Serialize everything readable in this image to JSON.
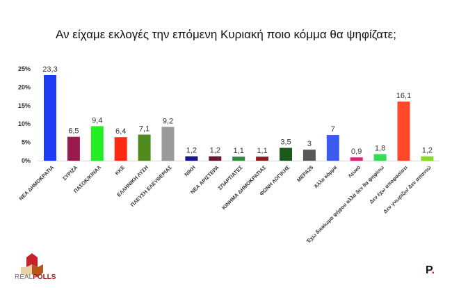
{
  "chart_data": {
    "type": "bar",
    "title": "Αν είχαμε εκλογές την επόμενη Κυριακή ποιο κόμμα θα ψηφίζατε;",
    "xlabel": "",
    "ylabel": "",
    "ylim": [
      0,
      25
    ],
    "yticks": [
      "0%",
      "5%",
      "10%",
      "15%",
      "20%",
      "25%"
    ],
    "ytick_values": [
      0,
      5,
      10,
      15,
      20,
      25
    ],
    "grid": false,
    "categories": [
      "ΝΕΑ ΔΗΜΟΚΡΑΤΙΑ",
      "ΣΥΡΙΖΑ",
      "ΠΑΣΟΚ/ΚΙΝΑΛ",
      "ΚΚΕ",
      "ΕΛΛΗΝΙΚΗ ΛΥΣΗ",
      "ΠΛΕΥΣΗ ΕΛΕΥΘΕΡΙΑΣ",
      "ΝΙΚΗ",
      "ΝΕΑ ΑΡΙΣΤΕΡΑ",
      "ΣΠΑΡΤΙΑΤΕΣ",
      "ΚΙΝΗΜΑ ΔΗΜΟΚΡΑΤΙΑΣ",
      "ΦΩΝΗ ΛΟΓΙΚΗΣ",
      "ΜΕΡΑ25",
      "Άλλο κόμμα",
      "Λευκό",
      "Έχω δικαίωμα ψήφου αλλά δεν θα ψηφίσω",
      "Δεν έχω αποφασίσει",
      "Δεν γνωρίζω/ Δεν απαντώ"
    ],
    "values": [
      23.3,
      6.5,
      9.4,
      6.4,
      7.1,
      9.2,
      1.2,
      1.2,
      1.1,
      1.1,
      3.5,
      3,
      7,
      0.9,
      1.8,
      16.1,
      1.2
    ],
    "data_labels": [
      "23,3",
      "6,5",
      "9,4",
      "6,4",
      "7,1",
      "9,2",
      "1,2",
      "1,2",
      "1,1",
      "1,1",
      "3,5",
      "3",
      "7",
      "0,9",
      "1,8",
      "16,1",
      "1,2"
    ],
    "colors": [
      "#1f3cf5",
      "#9a1a50",
      "#22ee22",
      "#ff2a14",
      "#4e8a1c",
      "#9a9a9a",
      "#16168e",
      "#6a1a2e",
      "#2e8c3a",
      "#8e1c1c",
      "#1c5a1c",
      "#585858",
      "#3c5cf0",
      "#e0207a",
      "#33dd55",
      "#ff4a2a",
      "#88dd22"
    ]
  },
  "logos": {
    "left": "REALPOLLS",
    "right": "P."
  }
}
